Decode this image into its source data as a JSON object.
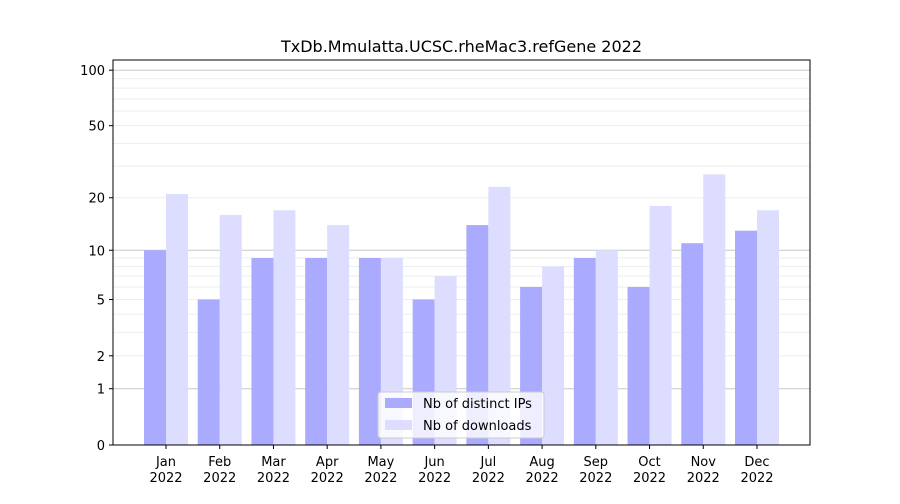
{
  "chart_data": {
    "type": "bar",
    "title": "TxDb.Mmulatta.UCSC.rheMac3.refGene 2022",
    "xlabel": "",
    "ylabel": "",
    "y_scale": "log(1+y)",
    "ylim": [
      0,
      120
    ],
    "y_ticks": [
      "0",
      "1",
      "2",
      "5",
      "10",
      "20",
      "50",
      "100"
    ],
    "y_tick_values": [
      0,
      1,
      2,
      5,
      10,
      20,
      50,
      100
    ],
    "grid": true,
    "legend_position": "bottom-center",
    "categories": [
      "Jan\n2022",
      "Feb\n2022",
      "Mar\n2022",
      "Apr\n2022",
      "May\n2022",
      "Jun\n2022",
      "Jul\n2022",
      "Aug\n2022",
      "Sep\n2022",
      "Oct\n2022",
      "Nov\n2022",
      "Dec\n2022"
    ],
    "category_month": [
      "Jan",
      "Feb",
      "Mar",
      "Apr",
      "May",
      "Jun",
      "Jul",
      "Aug",
      "Sep",
      "Oct",
      "Nov",
      "Dec"
    ],
    "category_year": "2022",
    "series": [
      {
        "name": "Nb of distinct IPs",
        "color": "#aaaaff",
        "values": [
          10,
          5,
          9,
          9,
          9,
          5,
          14,
          6,
          9,
          6,
          11,
          13
        ]
      },
      {
        "name": "Nb of downloads",
        "color": "#ddddff",
        "values": [
          21,
          16,
          17,
          14,
          9,
          7,
          23,
          8,
          10,
          18,
          27,
          17
        ]
      }
    ]
  }
}
